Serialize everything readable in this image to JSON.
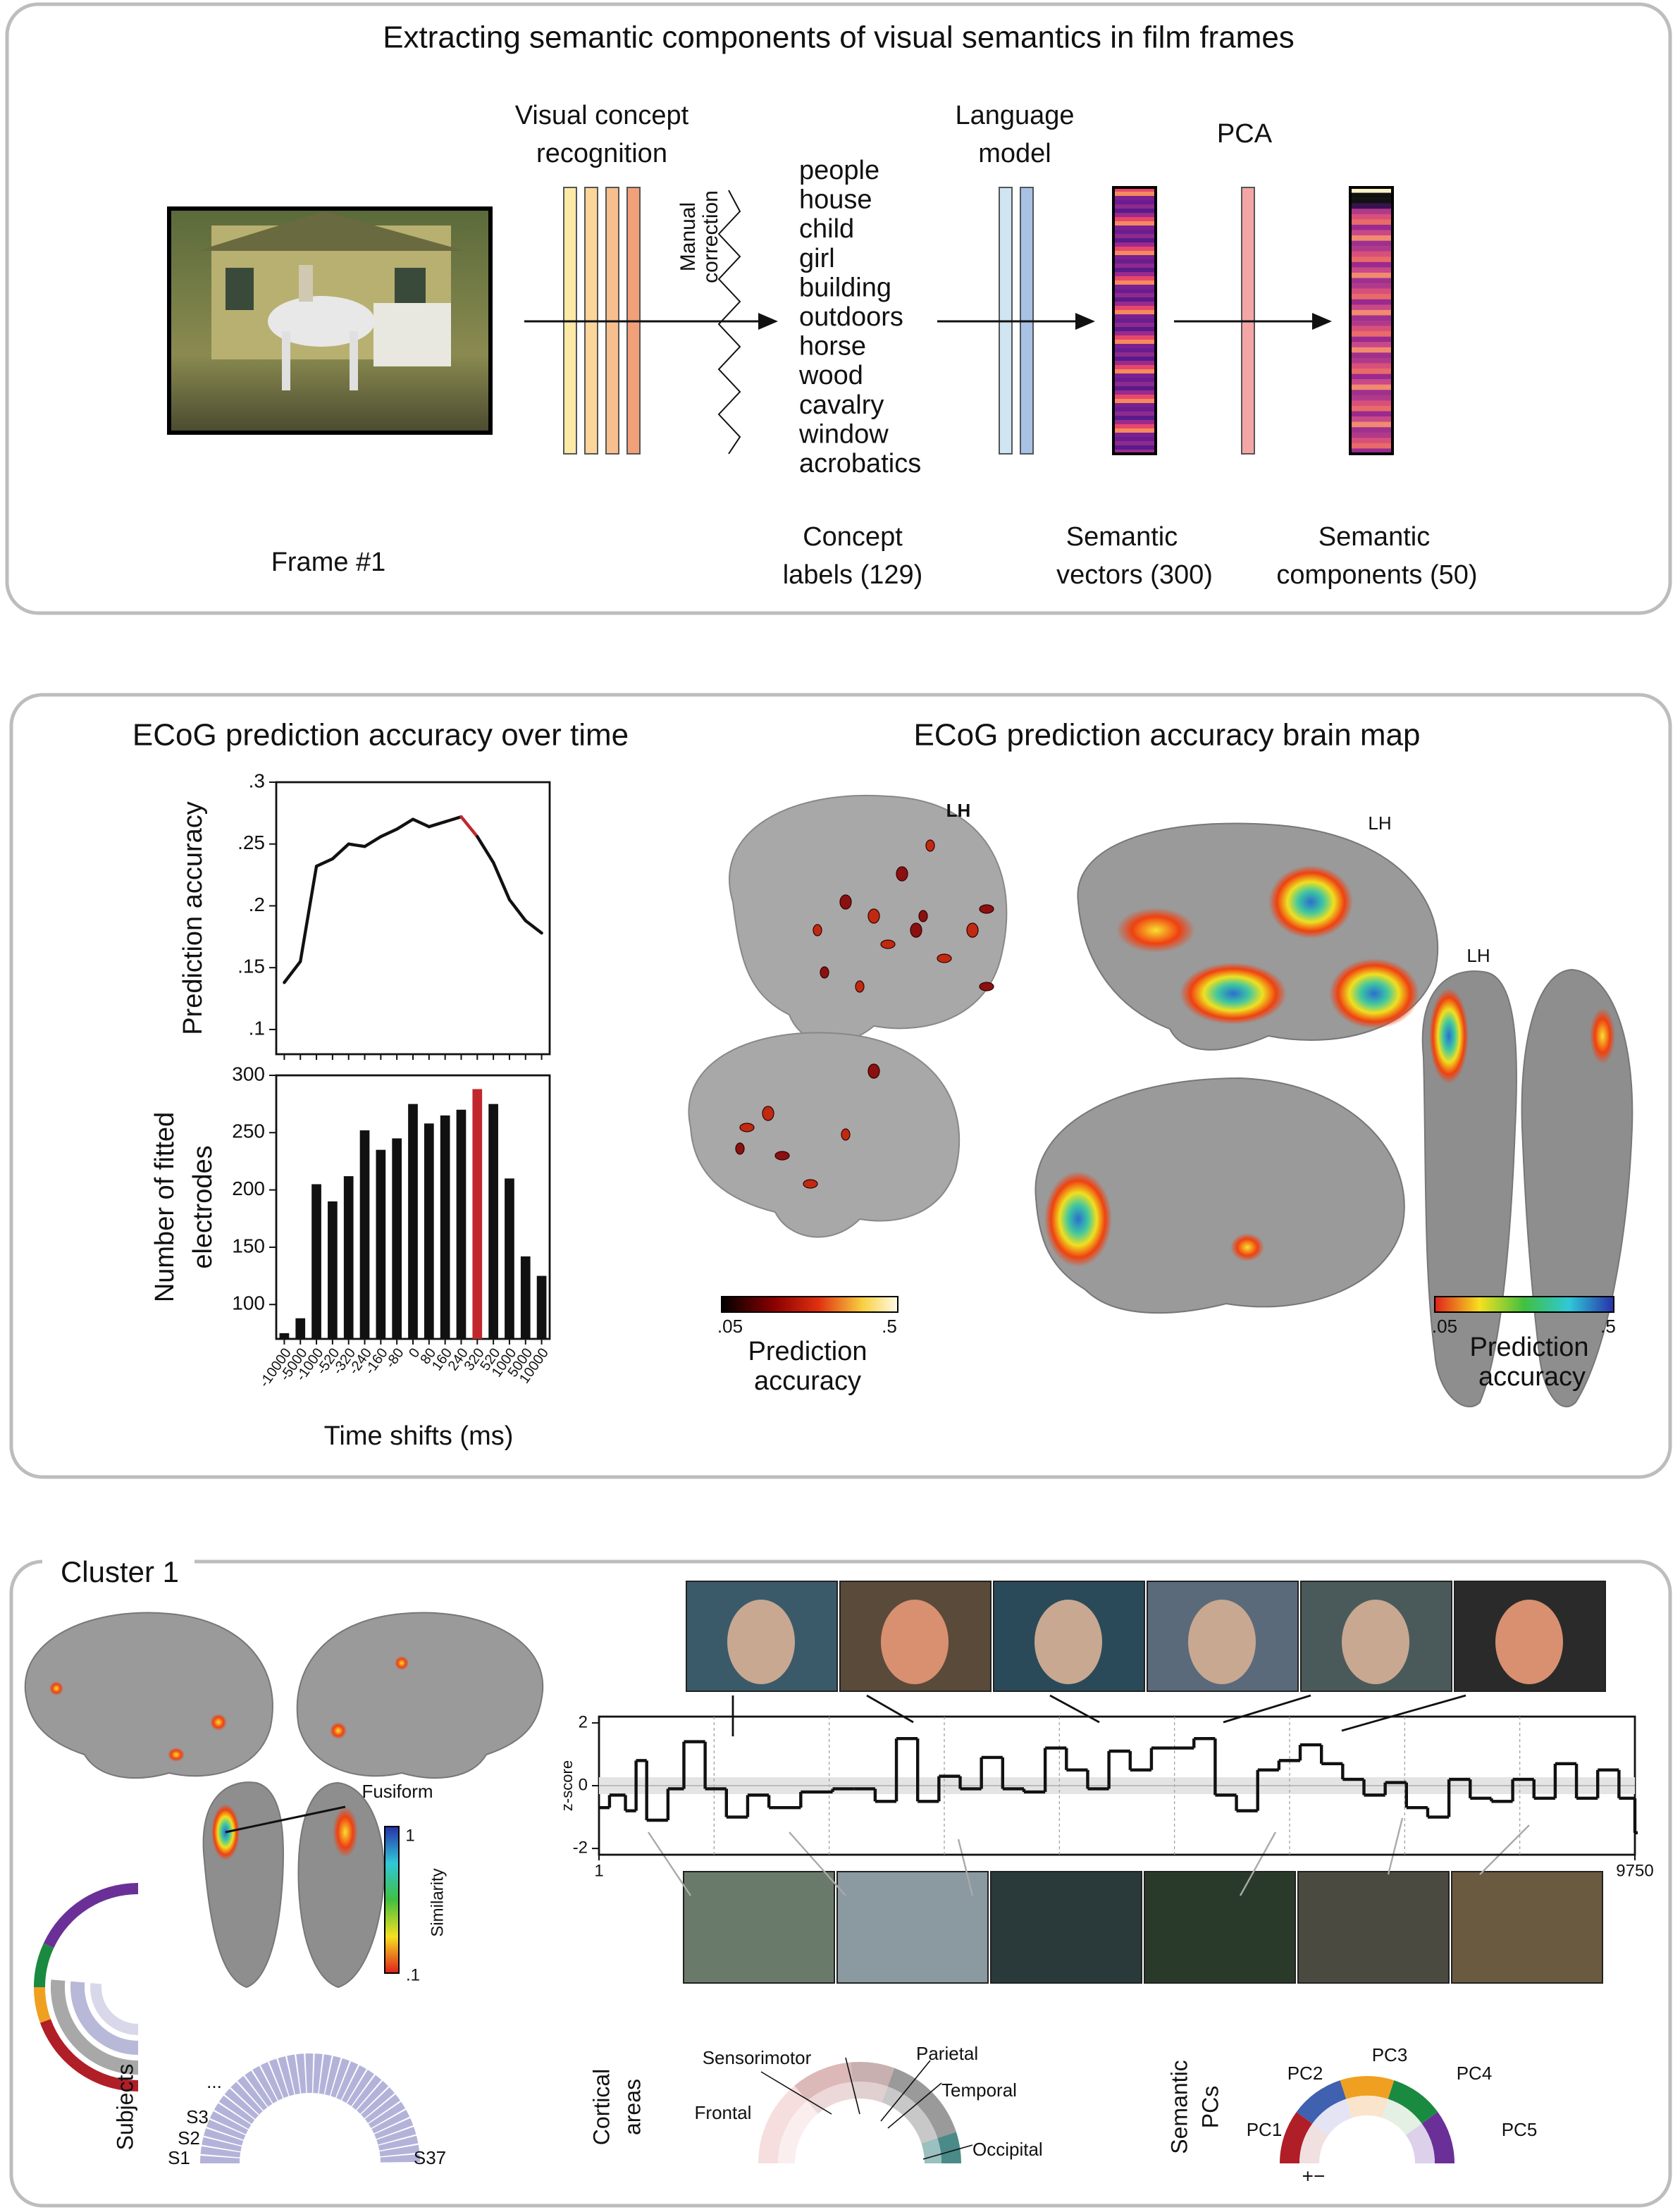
{
  "panel1": {
    "title": "Extracting semantic components of visual semantics in film frames",
    "visual_concept": [
      "Visual concept",
      "recognition"
    ],
    "manual_correction": [
      "Manual",
      "correction"
    ],
    "language_model": [
      "Language",
      "model"
    ],
    "pca": "PCA",
    "concepts": [
      "people",
      "house",
      "child",
      "girl",
      "building",
      "outdoors",
      "horse",
      "wood",
      "cavalry",
      "window",
      "acrobatics"
    ],
    "frame_label": "Frame #1",
    "concept_labels": [
      "Concept",
      "labels (129)"
    ],
    "semantic_vectors": [
      "Semantic",
      "vectors (300)"
    ],
    "semantic_components": [
      "Semantic",
      "components (50)"
    ]
  },
  "panel2": {
    "title_left": "ECoG prediction accuracy over time",
    "title_right": "ECoG prediction accuracy brain map",
    "brain_labels": [
      "LH",
      "LH",
      "LH"
    ],
    "colorbar_left": {
      "min": ".05",
      "max": ".5",
      "label": [
        "Prediction",
        "accuracy"
      ]
    },
    "colorbar_right": {
      "min": ".05",
      "max": ".5",
      "label": [
        "Prediction",
        "accuracy"
      ]
    }
  },
  "chart_data": [
    {
      "type": "line",
      "ylabel": "Prediction accuracy",
      "categories": [
        null,
        null,
        null,
        null,
        null,
        null,
        null,
        null,
        null,
        null,
        null,
        null,
        null,
        null,
        null,
        null,
        null
      ],
      "values": [
        0.138,
        0.155,
        0.232,
        0.238,
        0.25,
        0.248,
        0.256,
        0.262,
        0.27,
        0.264,
        0.268,
        0.272,
        0.256,
        0.235,
        0.205,
        0.188,
        0.178
      ],
      "colors": [
        "#111111",
        "#111111",
        "#111111",
        "#111111",
        "#111111",
        "#111111",
        "#111111",
        "#111111",
        "#111111",
        "#111111",
        "#111111",
        "#c1272d",
        "#c1272d",
        "#111111",
        "#111111",
        "#111111",
        "#111111"
      ],
      "ylim": [
        0.08,
        0.3
      ],
      "yticks": [
        {
          "value": 0.1,
          "label": ".1"
        },
        {
          "value": 0.15,
          "label": ".15"
        },
        {
          "value": 0.2,
          "label": ".2"
        },
        {
          "value": 0.25,
          "label": ".25"
        },
        {
          "value": 0.3,
          "label": ".3"
        }
      ]
    },
    {
      "type": "bar",
      "ylabel": [
        "Number of fitted",
        "electrodes"
      ],
      "xlabel": "Time shifts (ms)",
      "categories": [
        "-10000",
        "-5000",
        "-1000",
        "-520",
        "-320",
        "-240",
        "-160",
        "-80",
        "0",
        "80",
        "160",
        "240",
        "320",
        "520",
        "1000",
        "5000",
        "10000"
      ],
      "values": [
        75,
        88,
        205,
        190,
        212,
        252,
        235,
        245,
        275,
        258,
        265,
        270,
        288,
        275,
        210,
        142,
        125
      ],
      "colors": [
        "#111111",
        "#111111",
        "#111111",
        "#111111",
        "#111111",
        "#111111",
        "#111111",
        "#111111",
        "#111111",
        "#111111",
        "#111111",
        "#111111",
        "#c1272d",
        "#111111",
        "#111111",
        "#111111",
        "#111111"
      ],
      "ylim": [
        70,
        300
      ],
      "yticks": [
        100,
        150,
        200,
        250,
        300
      ]
    },
    {
      "type": "line",
      "ylabel": "z-score",
      "drawstyle": "steps-post",
      "color": "#111111",
      "x": [
        1,
        100,
        250,
        350,
        450,
        650,
        800,
        1000,
        1200,
        1400,
        1600,
        1900,
        2200,
        2400,
        2600,
        2800,
        3000,
        3200,
        3400,
        3600,
        3800,
        4000,
        4200,
        4400,
        4600,
        4800,
        5000,
        5200,
        5400,
        5600,
        5800,
        6000,
        6200,
        6400,
        6600,
        6800,
        7000,
        7200,
        7400,
        7600,
        7800,
        8000,
        8200,
        8400,
        8600,
        8800,
        9000,
        9200,
        9400,
        9600,
        9750
      ],
      "values": [
        -0.7,
        -0.3,
        -0.8,
        0.8,
        -1.1,
        -0.1,
        1.4,
        -0.1,
        -1.0,
        -0.3,
        -0.7,
        -0.2,
        -0.1,
        -0.1,
        -0.5,
        1.5,
        -0.5,
        0.3,
        -0.1,
        0.9,
        -0.1,
        -0.2,
        1.2,
        0.5,
        -0.1,
        1.1,
        0.5,
        1.2,
        1.2,
        1.5,
        -0.3,
        -0.8,
        0.5,
        0.8,
        1.3,
        0.7,
        0.2,
        -0.3,
        0.1,
        -0.7,
        -1.0,
        0.2,
        -0.4,
        -0.5,
        0.2,
        -0.4,
        0.7,
        -0.4,
        0.5,
        -0.4,
        -1.5
      ],
      "xlim": [
        1,
        9750
      ],
      "xticks": [
        1,
        9750
      ],
      "ylim": [
        -2.2,
        2.2
      ],
      "yticks": [
        2,
        0,
        -2
      ]
    }
  ],
  "panel3": {
    "title": "Cluster 1",
    "fusiform": "Fusiform",
    "similarity": {
      "label": "Similarity",
      "max": "1",
      "min": ".1"
    },
    "subjects": {
      "label": "Subjects",
      "items": [
        "S1",
        "S2",
        "S3",
        "...",
        "S37"
      ]
    },
    "cortical_areas": {
      "label": [
        "Cortical",
        "areas"
      ],
      "items": [
        "Frontal",
        "Sensorimotor",
        "Parietal",
        "Temporal",
        "Occipital"
      ]
    },
    "semantic_pcs": {
      "label": [
        "Semantic",
        "PCs"
      ],
      "items": [
        "PC1",
        "PC2",
        "PC3",
        "PC4",
        "PC5"
      ],
      "sign": "+−"
    }
  }
}
